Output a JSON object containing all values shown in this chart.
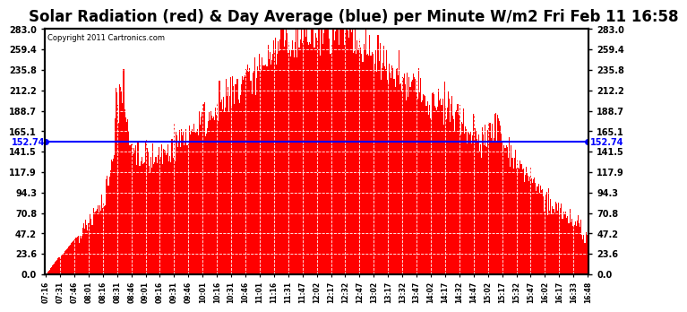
{
  "title": "Solar Radiation (red) & Day Average (blue) per Minute W/m2 Fri Feb 11 16:58",
  "copyright": "Copyright 2011 Cartronics.com",
  "day_average": 152.74,
  "y_min": 0.0,
  "y_max": 283.0,
  "y_ticks": [
    0.0,
    23.6,
    47.2,
    70.8,
    94.3,
    117.9,
    141.5,
    165.1,
    188.7,
    212.2,
    235.8,
    259.4,
    283.0
  ],
  "fill_color": "red",
  "line_color": "blue",
  "background_color": "#ffffff",
  "title_fontsize": 12,
  "x_labels": [
    "07:16",
    "07:31",
    "07:46",
    "08:01",
    "08:16",
    "08:31",
    "08:46",
    "09:01",
    "09:16",
    "09:31",
    "09:46",
    "10:01",
    "10:16",
    "10:31",
    "10:46",
    "11:01",
    "11:16",
    "11:31",
    "11:47",
    "12:02",
    "12:17",
    "12:32",
    "12:47",
    "13:02",
    "13:17",
    "13:32",
    "13:47",
    "14:02",
    "14:17",
    "14:32",
    "14:47",
    "15:02",
    "15:17",
    "15:32",
    "15:47",
    "16:02",
    "16:17",
    "16:33",
    "16:48"
  ]
}
